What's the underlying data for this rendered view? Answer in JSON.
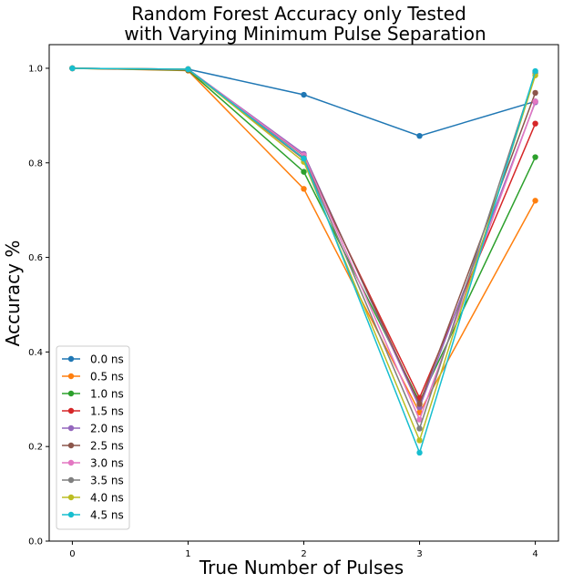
{
  "chart_data": {
    "type": "line",
    "title_line1": "Random Forest Accuracy only Tested",
    "title_line2": "with Varying Minimum Pulse Separation",
    "xlabel": "True Number of Pulses",
    "ylabel": "Accuracy %",
    "x": [
      0,
      1,
      2,
      3,
      4
    ],
    "xlim": [
      -0.2,
      4.2
    ],
    "ylim": [
      0.0,
      1.05
    ],
    "xticks": [
      "0",
      "1",
      "2",
      "3",
      "4"
    ],
    "yticks": [
      "0.0",
      "0.2",
      "0.4",
      "0.6",
      "0.8",
      "1.0"
    ],
    "grid": false,
    "legend_position": "lower-left",
    "series": [
      {
        "name": "0.0 ns",
        "color": "#1f77b4",
        "values": [
          1.0,
          0.998,
          0.944,
          0.857,
          0.93
        ]
      },
      {
        "name": "0.5 ns",
        "color": "#ff7f0e",
        "values": [
          1.0,
          0.995,
          0.745,
          0.272,
          0.72
        ]
      },
      {
        "name": "1.0 ns",
        "color": "#2ca02c",
        "values": [
          1.0,
          0.996,
          0.781,
          0.295,
          0.812
        ]
      },
      {
        "name": "1.5 ns",
        "color": "#d62728",
        "values": [
          1.0,
          0.997,
          0.808,
          0.303,
          0.883
        ]
      },
      {
        "name": "2.0 ns",
        "color": "#9467bd",
        "values": [
          1.0,
          0.998,
          0.819,
          0.283,
          0.928
        ]
      },
      {
        "name": "2.5 ns",
        "color": "#8c564b",
        "values": [
          1.0,
          0.998,
          0.815,
          0.29,
          0.948
        ]
      },
      {
        "name": "3.0 ns",
        "color": "#e377c2",
        "values": [
          1.0,
          0.998,
          0.816,
          0.257,
          0.93
        ]
      },
      {
        "name": "3.5 ns",
        "color": "#7f7f7f",
        "values": [
          1.0,
          0.998,
          0.81,
          0.238,
          0.99
        ]
      },
      {
        "name": "4.0 ns",
        "color": "#bcbd22",
        "values": [
          1.0,
          0.998,
          0.802,
          0.213,
          0.985
        ]
      },
      {
        "name": "4.5 ns",
        "color": "#17becf",
        "values": [
          1.0,
          0.998,
          0.809,
          0.187,
          0.994
        ]
      }
    ]
  }
}
